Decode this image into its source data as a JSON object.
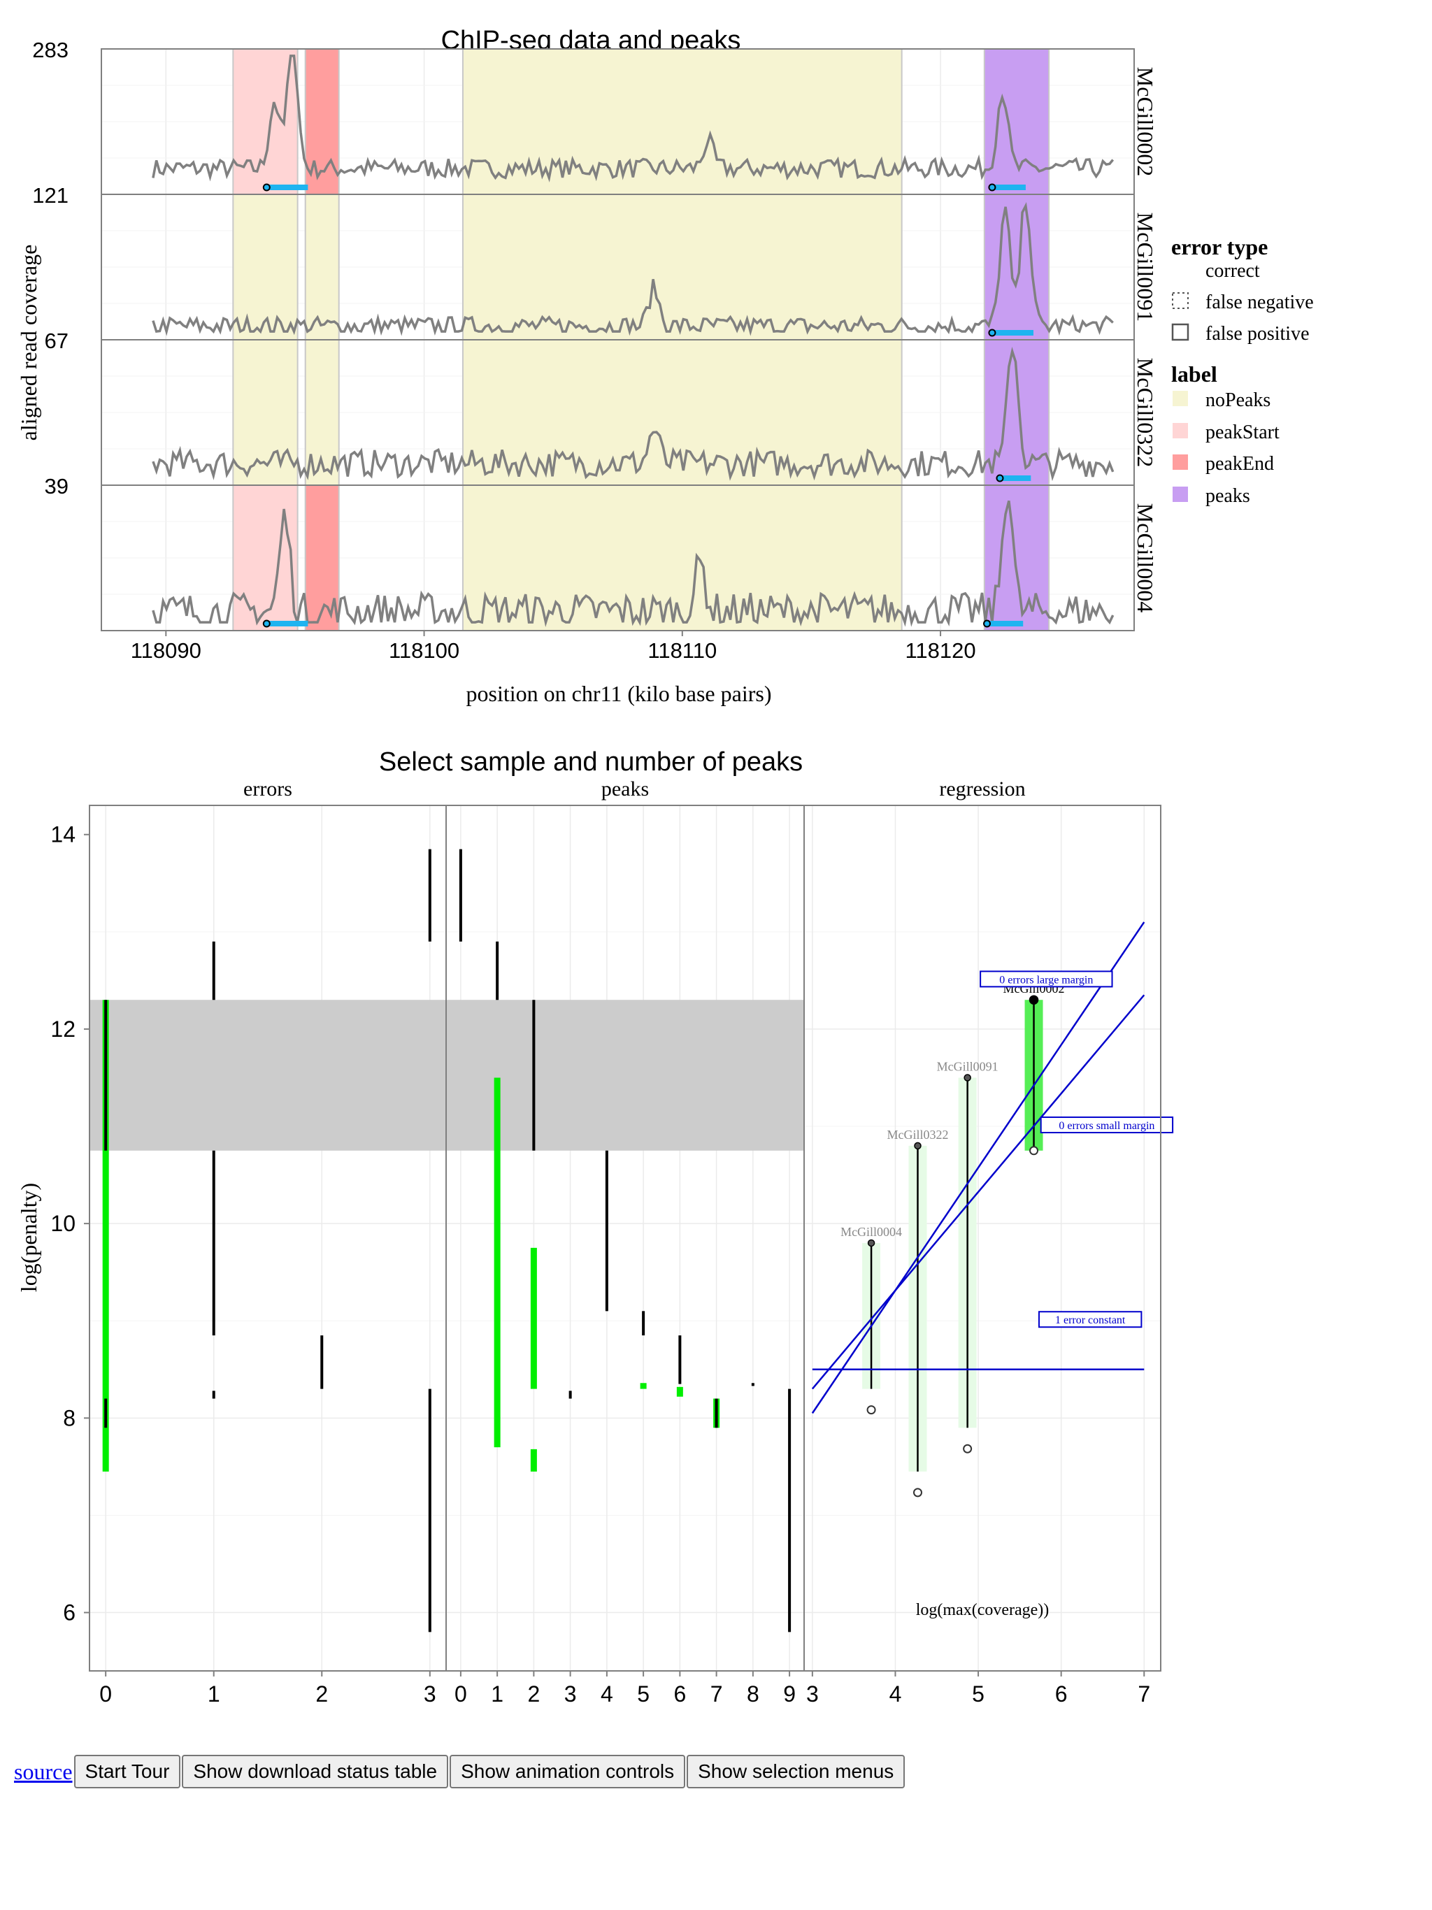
{
  "chart_data": [
    {
      "type": "line",
      "title": "ChIP-seq data and peaks",
      "xlabel": "position on chr11 (kilo base pairs)",
      "ylabel": "aligned read coverage",
      "xlim": [
        118087.5,
        118127.5
      ],
      "xticks": [
        118090,
        118100,
        118110,
        118120
      ],
      "panels": [
        {
          "name": "McGill0002",
          "ymax_label": "283",
          "ymax": 283,
          "spikes": [
            [
              118094.9,
              0.95
            ],
            [
              118094.2,
              0.5
            ],
            [
              118122.4,
              0.58
            ],
            [
              118111,
              0.2
            ]
          ],
          "base": 0.15,
          "noise": 0.07
        },
        {
          "name": "McGill0091",
          "ymax_label": "121",
          "ymax": 121,
          "spikes": [
            [
              118122.5,
              0.85
            ],
            [
              118123.3,
              0.95
            ],
            [
              118108.9,
              0.28
            ]
          ],
          "base": 0.06,
          "noise": 0.07
        },
        {
          "name": "McGill0322",
          "ymax_label": "67",
          "ymax": 67,
          "spikes": [
            [
              118122.8,
              0.9
            ],
            [
              118108.9,
              0.25
            ]
          ],
          "base": 0.12,
          "noise": 0.1
        },
        {
          "name": "McGill0004",
          "ymax_label": "39",
          "ymax": 39,
          "spikes": [
            [
              118094.6,
              0.7
            ],
            [
              118122.6,
              0.92
            ],
            [
              118110.7,
              0.35
            ]
          ],
          "base": 0.1,
          "noise": 0.14
        }
      ],
      "label_regions": [
        {
          "sample": "McGill0002",
          "regions": [
            [
              118092.6,
              118095.1,
              "peakStart"
            ],
            [
              118095.4,
              118096.7,
              "peakEnd"
            ],
            [
              118101.5,
              118118.5,
              "noPeaks"
            ],
            [
              118121.7,
              118124.2,
              "peaks"
            ]
          ]
        },
        {
          "sample": "McGill0091",
          "regions": [
            [
              118092.6,
              118095.1,
              "noPeaks"
            ],
            [
              118095.4,
              118096.7,
              "noPeaks"
            ],
            [
              118101.5,
              118118.5,
              "noPeaks"
            ],
            [
              118121.7,
              118124.2,
              "peaks"
            ]
          ]
        },
        {
          "sample": "McGill0322",
          "regions": [
            [
              118092.6,
              118095.1,
              "noPeaks"
            ],
            [
              118095.4,
              118096.7,
              "noPeaks"
            ],
            [
              118101.5,
              118118.5,
              "noPeaks"
            ],
            [
              118121.7,
              118124.2,
              "peaks"
            ]
          ]
        },
        {
          "sample": "McGill0004",
          "regions": [
            [
              118092.6,
              118095.1,
              "peakStart"
            ],
            [
              118095.4,
              118096.7,
              "peakEnd"
            ],
            [
              118101.5,
              118118.5,
              "noPeaks"
            ],
            [
              118121.7,
              118124.2,
              "peaks"
            ]
          ]
        }
      ],
      "peak_segments": [
        {
          "sample": "McGill0002",
          "start": 118093.9,
          "end": 118095.5
        },
        {
          "sample": "McGill0002",
          "start": 118122.0,
          "end": 118123.3
        },
        {
          "sample": "McGill0091",
          "start": 118122.0,
          "end": 118123.6
        },
        {
          "sample": "McGill0322",
          "start": 118122.3,
          "end": 118123.5
        },
        {
          "sample": "McGill0004",
          "start": 118093.9,
          "end": 118095.5
        },
        {
          "sample": "McGill0004",
          "start": 118121.8,
          "end": 118123.2
        }
      ],
      "legend": {
        "placement": "right",
        "error_type_title": "error type",
        "error_types": [
          "correct",
          "false negative",
          "false positive"
        ],
        "label_title": "label",
        "labels": [
          {
            "name": "noPeaks",
            "color": "#f6f4d2"
          },
          {
            "name": "peakStart",
            "color": "#ffd5d5"
          },
          {
            "name": "peakEnd",
            "color": "#ff9e9e"
          },
          {
            "name": "peaks",
            "color": "#c89ef2"
          }
        ]
      },
      "colors": {
        "coverage": "#808080",
        "peak_segment": "#1eb4f0"
      }
    },
    {
      "type": "line",
      "title": "Select sample and number of peaks",
      "ylabel": "log(penalty)",
      "ylim": [
        5.4,
        14.3
      ],
      "yticks": [
        6,
        8,
        10,
        12
      ],
      "selected_band": [
        10.75,
        12.3
      ],
      "grid": true,
      "facets": [
        {
          "name": "errors",
          "xlim": [
            -0.15,
            3.15
          ],
          "xticks": [
            0,
            1,
            2,
            3
          ],
          "segments": [
            {
              "x": 0,
              "y0": 7.45,
              "y1": 12.3,
              "color": "#00ee00"
            },
            {
              "x": 0,
              "y0": 7.9,
              "y1": 8.2,
              "color": "#000000"
            },
            {
              "x": 0,
              "y0": 10.75,
              "y1": 12.3,
              "color": "#000000"
            },
            {
              "x": 1,
              "y0": 12.3,
              "y1": 12.9,
              "color": "#000000"
            },
            {
              "x": 1,
              "y0": 8.85,
              "y1": 10.75,
              "color": "#000000"
            },
            {
              "x": 1,
              "y0": 8.2,
              "y1": 8.28,
              "color": "#000000"
            },
            {
              "x": 2,
              "y0": 8.3,
              "y1": 8.85,
              "color": "#000000"
            },
            {
              "x": 3,
              "y0": 12.9,
              "y1": 13.85,
              "color": "#000000"
            },
            {
              "x": 3,
              "y0": 5.8,
              "y1": 8.3,
              "color": "#000000"
            }
          ]
        },
        {
          "name": "peaks",
          "xlim": [
            -0.4,
            9.4
          ],
          "xticks": [
            0,
            1,
            2,
            3,
            4,
            5,
            6,
            7,
            8,
            9
          ],
          "segments": [
            {
              "x": 0,
              "y0": 12.9,
              "y1": 13.85,
              "color": "#000000"
            },
            {
              "x": 1,
              "y0": 12.3,
              "y1": 12.9,
              "color": "#000000"
            },
            {
              "x": 1,
              "y0": 7.7,
              "y1": 11.5,
              "color": "#00ee00"
            },
            {
              "x": 2,
              "y0": 10.75,
              "y1": 12.3,
              "color": "#000000"
            },
            {
              "x": 2,
              "y0": 8.3,
              "y1": 9.75,
              "color": "#00ee00"
            },
            {
              "x": 2,
              "y0": 7.45,
              "y1": 7.68,
              "color": "#00ee00"
            },
            {
              "x": 3,
              "y0": 8.2,
              "y1": 8.28,
              "color": "#000000"
            },
            {
              "x": 4,
              "y0": 9.1,
              "y1": 10.75,
              "color": "#000000"
            },
            {
              "x": 5,
              "y0": 8.85,
              "y1": 9.1,
              "color": "#000000"
            },
            {
              "x": 5,
              "y0": 8.3,
              "y1": 8.36,
              "color": "#00ee00"
            },
            {
              "x": 6,
              "y0": 8.35,
              "y1": 8.85,
              "color": "#000000"
            },
            {
              "x": 6,
              "y0": 8.22,
              "y1": 8.32,
              "color": "#00ee00"
            },
            {
              "x": 7,
              "y0": 7.9,
              "y1": 8.2,
              "color": "#00ee00"
            },
            {
              "x": 7,
              "y0": 7.9,
              "y1": 8.2,
              "color": "#000000"
            },
            {
              "x": 8,
              "y0": 8.33,
              "y1": 8.36,
              "color": "#000000"
            },
            {
              "x": 9,
              "y0": 5.8,
              "y1": 8.3,
              "color": "#000000"
            }
          ]
        },
        {
          "name": "regression",
          "xlabel": "log(max(coverage))",
          "xlim": [
            2.9,
            7.2
          ],
          "xticks": [
            3,
            4,
            5,
            6,
            7
          ],
          "samples": [
            {
              "name": "McGill0002",
              "x": 5.67,
              "lo": 10.75,
              "hi": 12.3,
              "band_lo": 10.75,
              "band_hi": 12.3,
              "selected": true
            },
            {
              "name": "McGill0091",
              "x": 4.87,
              "lo": 7.9,
              "hi": 11.5,
              "band_lo": 7.9,
              "band_hi": 11.5,
              "selected": false
            },
            {
              "name": "McGill0322",
              "x": 4.27,
              "lo": 7.45,
              "hi": 10.8,
              "band_lo": 7.45,
              "band_hi": 10.8,
              "selected": false
            },
            {
              "name": "McGill0004",
              "x": 3.71,
              "lo": 8.3,
              "hi": 9.8,
              "band_lo": 8.3,
              "band_hi": 9.8,
              "selected": false
            }
          ],
          "lines": [
            {
              "name": "0 errors large margin",
              "x0": 3.0,
              "y0": 8.05,
              "x1": 7.0,
              "y1": 13.1
            },
            {
              "name": "0 errors small margin",
              "x0": 3.0,
              "y0": 8.3,
              "x1": 7.0,
              "y1": 12.35
            },
            {
              "name": "1 error constant",
              "x0": 3.0,
              "y0": 8.5,
              "x1": 7.0,
              "y1": 8.5
            }
          ],
          "line_labels": [
            {
              "text": "0 errors large margin",
              "x": 5.82,
              "y": 12.5
            },
            {
              "text": "0 errors small margin",
              "x": 6.55,
              "y": 11.0
            },
            {
              "text": "1 error constant",
              "x": 6.35,
              "y": 9.0
            }
          ],
          "line_color": "#0000cc"
        }
      ]
    }
  ],
  "controls": {
    "source_link": "source",
    "buttons": [
      "Start Tour",
      "Show download status table",
      "Show animation controls",
      "Show selection menus"
    ]
  }
}
